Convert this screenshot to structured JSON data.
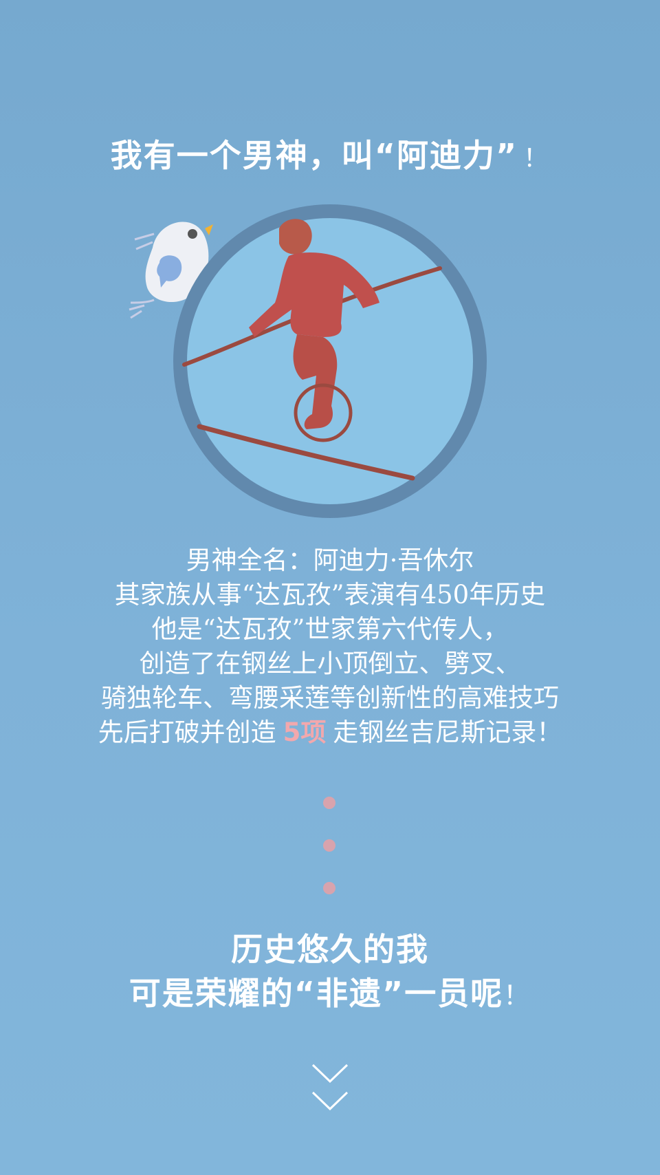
{
  "header": {
    "title": "我有一个男神，叫“阿迪力”",
    "title_bang": "！"
  },
  "info": {
    "line1": "男神全名：阿迪力·吾休尔",
    "line2": "其家族从事“达瓦孜”表演有450年历史",
    "line3": "他是“达瓦孜”世家第六代传人，",
    "line4": "创造了在钢丝上小顶倒立、劈叉、",
    "line5": "骑独轮车、弯腰采莲等创新性的高难技巧",
    "line6_before": "先后打破并创造",
    "line6_highlight": "5项",
    "line6_after": "走钢丝吉尼斯记录！"
  },
  "closing": {
    "line1": "历史悠久的我",
    "line2": "可是荣耀的“非遗”一员呢",
    "line2_bang": "！"
  },
  "icons": {
    "bird": "bird-icon",
    "tightrope_walker": "tightrope-walker-illustration",
    "scroll": "double-chevron-down-icon"
  },
  "colors": {
    "background": "#7fb2d8",
    "circle_ring": "#6189ad",
    "circle_fill": "#8bc4e6",
    "figure": "#c0504d",
    "highlight": "#f2a8ad",
    "dots": "#d8a3ad"
  }
}
